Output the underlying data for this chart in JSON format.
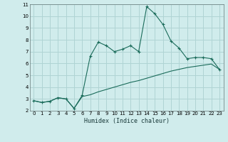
{
  "xlabel": "Humidex (Indice chaleur)",
  "bg_color": "#d0ecec",
  "grid_color": "#afd4d4",
  "line_color": "#1a6b5a",
  "xlim": [
    -0.5,
    23.5
  ],
  "ylim": [
    2,
    11
  ],
  "xticks": [
    0,
    1,
    2,
    3,
    4,
    5,
    6,
    7,
    8,
    9,
    10,
    11,
    12,
    13,
    14,
    15,
    16,
    17,
    18,
    19,
    20,
    21,
    22,
    23
  ],
  "yticks": [
    2,
    3,
    4,
    5,
    6,
    7,
    8,
    9,
    10,
    11
  ],
  "series1_x": [
    0,
    1,
    2,
    3,
    4,
    5,
    6,
    7,
    8,
    9,
    10,
    11,
    12,
    13,
    14,
    15,
    16,
    17,
    18,
    19,
    20,
    21,
    22,
    23
  ],
  "series1_y": [
    2.85,
    2.7,
    2.8,
    3.1,
    3.0,
    2.2,
    3.3,
    6.6,
    7.8,
    7.5,
    7.0,
    7.2,
    7.5,
    7.0,
    10.8,
    10.2,
    9.3,
    7.9,
    7.3,
    6.4,
    6.5,
    6.5,
    6.4,
    5.5
  ],
  "series2_x": [
    0,
    1,
    2,
    3,
    4,
    5,
    6,
    7,
    8,
    9,
    10,
    11,
    12,
    13,
    14,
    15,
    16,
    17,
    18,
    19,
    20,
    21,
    22,
    23
  ],
  "series2_y": [
    2.85,
    2.7,
    2.8,
    3.1,
    3.0,
    2.2,
    3.2,
    3.35,
    3.6,
    3.8,
    4.0,
    4.2,
    4.4,
    4.55,
    4.75,
    4.95,
    5.15,
    5.35,
    5.5,
    5.65,
    5.75,
    5.85,
    5.95,
    5.5
  ]
}
